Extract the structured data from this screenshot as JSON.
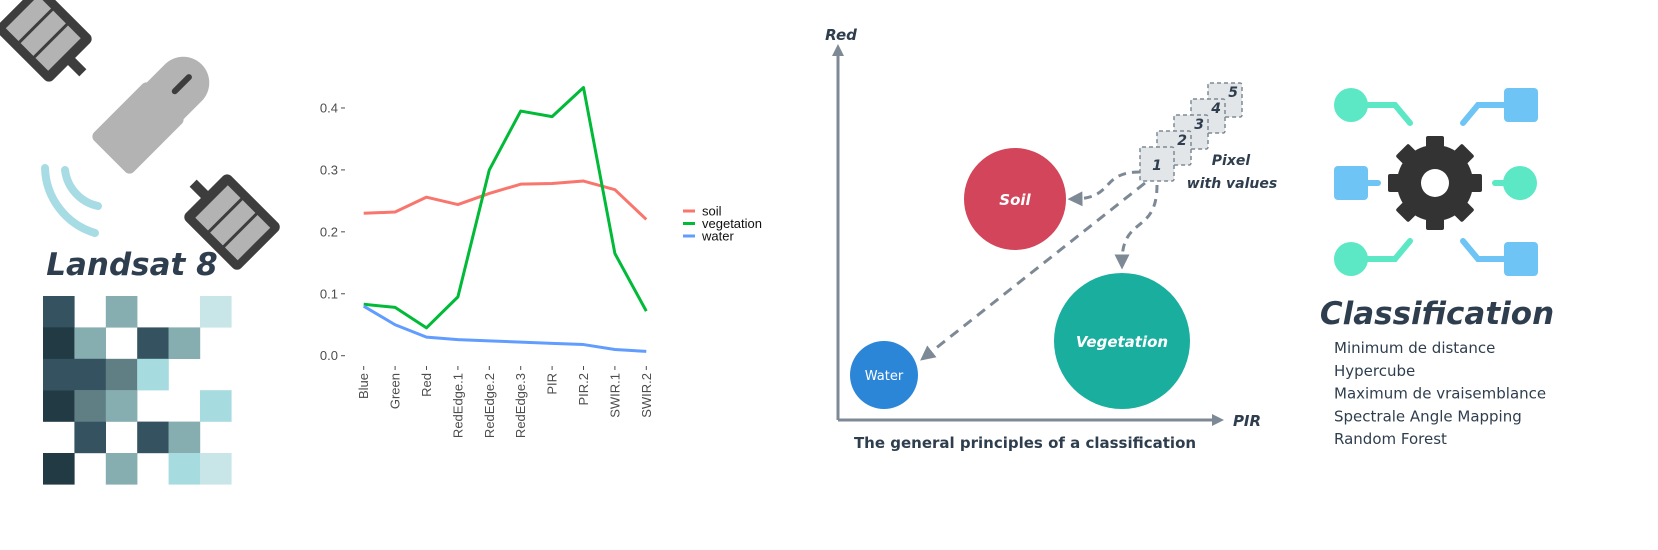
{
  "landsat": {
    "title": "Landsat 8"
  },
  "chart_data": {
    "type": "line",
    "categories": [
      "Blue",
      "Green",
      "Red",
      "RedEdge.1",
      "RedEdge.2",
      "RedEdge.3",
      "PIR",
      "PIR.2",
      "SWIR.1",
      "SWIR.2"
    ],
    "series": [
      {
        "name": "soil",
        "color": "#f8766d",
        "values": [
          0.23,
          0.232,
          0.256,
          0.244,
          0.262,
          0.277,
          0.278,
          0.282,
          0.268,
          0.22
        ]
      },
      {
        "name": "vegetation",
        "color": "#00ba38",
        "values": [
          0.083,
          0.078,
          0.045,
          0.095,
          0.3,
          0.395,
          0.386,
          0.433,
          0.165,
          0.072
        ]
      },
      {
        "name": "water",
        "color": "#619cff",
        "values": [
          0.08,
          0.05,
          0.03,
          0.026,
          0.024,
          0.022,
          0.02,
          0.018,
          0.01,
          0.007
        ]
      }
    ],
    "ylim": [
      -0.015,
      0.45
    ],
    "yticks": [
      {
        "value": 0,
        "label": "0.0"
      },
      0.1,
      0.2,
      0.3,
      0.4
    ],
    "grid": false,
    "legend": "right"
  },
  "diagram": {
    "y_axis": "Red",
    "x_axis": "PIR",
    "caption": "The general principles of a classification",
    "pixel_label": [
      "Pixel",
      "with values"
    ],
    "pixels": [
      "1",
      "2",
      "3",
      "4",
      "5"
    ],
    "classes": [
      "Soil",
      "Vegetation",
      "Water"
    ]
  },
  "classification": {
    "title": "Classification",
    "methods": [
      "Minimum de distance",
      "Hypercube",
      "Maximum de vraisemblance",
      "Spectrale Angle Mapping",
      "Random Forest"
    ]
  }
}
